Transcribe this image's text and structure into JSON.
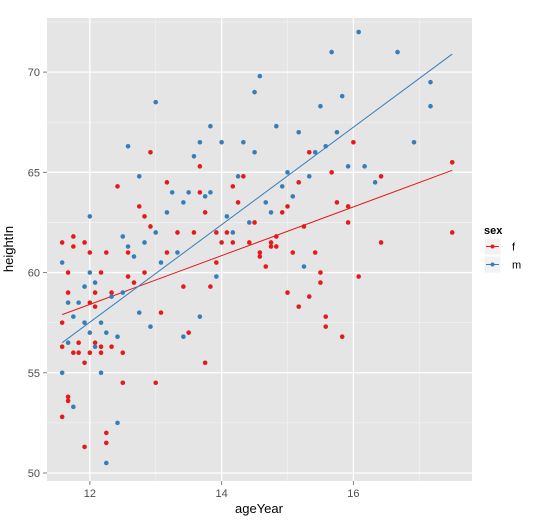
{
  "chart_data": {
    "type": "scatter",
    "title": "",
    "xlabel": "ageYear",
    "ylabel": "heightIn",
    "xlim": [
      11.35,
      17.8
    ],
    "ylim": [
      49.6,
      72.7
    ],
    "x_ticks": [
      12,
      14,
      16
    ],
    "y_ticks": [
      50,
      55,
      60,
      65,
      70
    ],
    "grid": true,
    "legend": {
      "title": "sex",
      "placement": "right"
    },
    "series": [
      {
        "name": "f",
        "color": "#e41a1c",
        "fit_line": {
          "x": [
            11.58,
            17.5
          ],
          "y": [
            57.9,
            65.1
          ]
        },
        "points": [
          [
            11.58,
            56.3
          ],
          [
            11.58,
            52.8
          ],
          [
            11.67,
            53.8
          ],
          [
            11.67,
            53.6
          ],
          [
            11.58,
            57.5
          ],
          [
            11.58,
            61.5
          ],
          [
            11.67,
            60.0
          ],
          [
            11.67,
            59.0
          ],
          [
            11.75,
            61.8
          ],
          [
            11.75,
            61.3
          ],
          [
            11.75,
            56.0
          ],
          [
            11.83,
            56.5
          ],
          [
            11.83,
            56.0
          ],
          [
            11.92,
            55.5
          ],
          [
            11.92,
            61.5
          ],
          [
            11.92,
            51.3
          ],
          [
            12.0,
            61.0
          ],
          [
            12.0,
            58.5
          ],
          [
            12.0,
            56.0
          ],
          [
            12.08,
            59.0
          ],
          [
            12.08,
            58.3
          ],
          [
            12.08,
            56.5
          ],
          [
            12.17,
            60.0
          ],
          [
            12.17,
            56.3
          ],
          [
            12.25,
            61.0
          ],
          [
            12.25,
            51.5
          ],
          [
            12.25,
            52.0
          ],
          [
            12.33,
            59.0
          ],
          [
            12.33,
            56.3
          ],
          [
            12.42,
            64.3
          ],
          [
            12.5,
            56.0
          ],
          [
            12.5,
            54.5
          ],
          [
            12.58,
            61.0
          ],
          [
            12.67,
            59.5
          ],
          [
            12.75,
            63.3
          ],
          [
            12.83,
            62.8
          ],
          [
            12.83,
            60.0
          ],
          [
            12.92,
            62.3
          ],
          [
            12.92,
            66.0
          ],
          [
            13.0,
            54.5
          ],
          [
            13.08,
            58.0
          ],
          [
            13.17,
            64.5
          ],
          [
            13.17,
            61.0
          ],
          [
            13.33,
            62.0
          ],
          [
            13.42,
            59.3
          ],
          [
            13.5,
            57.0
          ],
          [
            13.58,
            62.0
          ],
          [
            13.67,
            64.0
          ],
          [
            13.67,
            65.3
          ],
          [
            13.75,
            55.5
          ],
          [
            13.75,
            63.0
          ],
          [
            13.83,
            59.3
          ],
          [
            13.92,
            62.0
          ],
          [
            14.0,
            61.5
          ],
          [
            14.08,
            62.0
          ],
          [
            14.17,
            64.3
          ],
          [
            14.17,
            61.5
          ],
          [
            14.25,
            63.5
          ],
          [
            14.33,
            64.8
          ],
          [
            14.42,
            61.5
          ],
          [
            14.5,
            62.5
          ],
          [
            14.58,
            61.0
          ],
          [
            14.58,
            60.8
          ],
          [
            14.67,
            60.3
          ],
          [
            14.75,
            61.5
          ],
          [
            14.75,
            61.3
          ],
          [
            14.83,
            61.8
          ],
          [
            14.83,
            61.3
          ],
          [
            14.92,
            63.0
          ],
          [
            15.0,
            59.0
          ],
          [
            15.0,
            63.3
          ],
          [
            15.08,
            61.0
          ],
          [
            15.17,
            58.3
          ],
          [
            15.17,
            64.5
          ],
          [
            15.25,
            62.3
          ],
          [
            15.33,
            58.8
          ],
          [
            15.42,
            61.0
          ],
          [
            15.5,
            60.0
          ],
          [
            15.5,
            59.5
          ],
          [
            15.58,
            57.8
          ],
          [
            15.58,
            57.3
          ],
          [
            15.67,
            65.0
          ],
          [
            15.75,
            63.5
          ],
          [
            15.83,
            56.8
          ],
          [
            15.92,
            62.5
          ],
          [
            16.0,
            66.5
          ],
          [
            16.08,
            59.8
          ],
          [
            16.42,
            61.5
          ],
          [
            16.42,
            64.8
          ],
          [
            17.5,
            62.0
          ],
          [
            17.5,
            65.5
          ],
          [
            12.17,
            56.0
          ],
          [
            12.58,
            59.8
          ],
          [
            13.92,
            60.5
          ],
          [
            15.33,
            66.0
          ],
          [
            15.92,
            63.3
          ]
        ]
      },
      {
        "name": "m",
        "color": "#377eb8",
        "fit_line": {
          "x": [
            11.58,
            17.5
          ],
          "y": [
            56.5,
            70.9
          ]
        },
        "points": [
          [
            11.58,
            55.0
          ],
          [
            11.58,
            60.5
          ],
          [
            11.67,
            56.5
          ],
          [
            11.67,
            58.5
          ],
          [
            11.75,
            53.3
          ],
          [
            11.75,
            57.8
          ],
          [
            11.83,
            58.5
          ],
          [
            11.92,
            57.5
          ],
          [
            11.92,
            59.3
          ],
          [
            12.0,
            62.8
          ],
          [
            12.0,
            60.0
          ],
          [
            12.0,
            57.0
          ],
          [
            12.08,
            56.3
          ],
          [
            12.08,
            59.5
          ],
          [
            12.17,
            57.5
          ],
          [
            12.17,
            55.0
          ],
          [
            12.25,
            50.5
          ],
          [
            12.25,
            57.0
          ],
          [
            12.33,
            58.8
          ],
          [
            12.42,
            52.5
          ],
          [
            12.42,
            56.8
          ],
          [
            12.5,
            59.0
          ],
          [
            12.5,
            61.8
          ],
          [
            12.58,
            66.3
          ],
          [
            12.67,
            60.8
          ],
          [
            12.75,
            64.8
          ],
          [
            12.75,
            58.0
          ],
          [
            12.83,
            61.5
          ],
          [
            12.92,
            57.3
          ],
          [
            13.0,
            68.5
          ],
          [
            13.0,
            62.0
          ],
          [
            13.08,
            60.5
          ],
          [
            13.17,
            63.0
          ],
          [
            13.25,
            64.0
          ],
          [
            13.33,
            61.0
          ],
          [
            13.42,
            56.8
          ],
          [
            13.42,
            63.5
          ],
          [
            13.5,
            64.0
          ],
          [
            13.58,
            65.8
          ],
          [
            13.67,
            57.8
          ],
          [
            13.67,
            66.5
          ],
          [
            13.75,
            63.8
          ],
          [
            13.83,
            67.3
          ],
          [
            13.92,
            59.8
          ],
          [
            14.0,
            66.5
          ],
          [
            14.08,
            62.8
          ],
          [
            14.17,
            62.0
          ],
          [
            14.25,
            64.8
          ],
          [
            14.33,
            66.5
          ],
          [
            14.42,
            62.5
          ],
          [
            14.5,
            66.0
          ],
          [
            14.5,
            69.0
          ],
          [
            14.58,
            69.8
          ],
          [
            14.67,
            63.5
          ],
          [
            14.75,
            63.0
          ],
          [
            14.83,
            67.3
          ],
          [
            14.92,
            64.3
          ],
          [
            15.0,
            65.0
          ],
          [
            15.08,
            63.8
          ],
          [
            15.17,
            67.0
          ],
          [
            15.25,
            60.3
          ],
          [
            15.33,
            64.8
          ],
          [
            15.42,
            66.0
          ],
          [
            15.5,
            68.3
          ],
          [
            15.58,
            66.3
          ],
          [
            15.67,
            71.0
          ],
          [
            15.75,
            67.0
          ],
          [
            15.83,
            68.8
          ],
          [
            15.92,
            65.3
          ],
          [
            16.08,
            72.0
          ],
          [
            16.17,
            65.3
          ],
          [
            16.33,
            64.5
          ],
          [
            16.67,
            71.0
          ],
          [
            16.92,
            66.5
          ],
          [
            17.17,
            69.5
          ],
          [
            17.17,
            68.3
          ],
          [
            12.58,
            61.3
          ],
          [
            13.83,
            64.0
          ]
        ]
      }
    ]
  }
}
